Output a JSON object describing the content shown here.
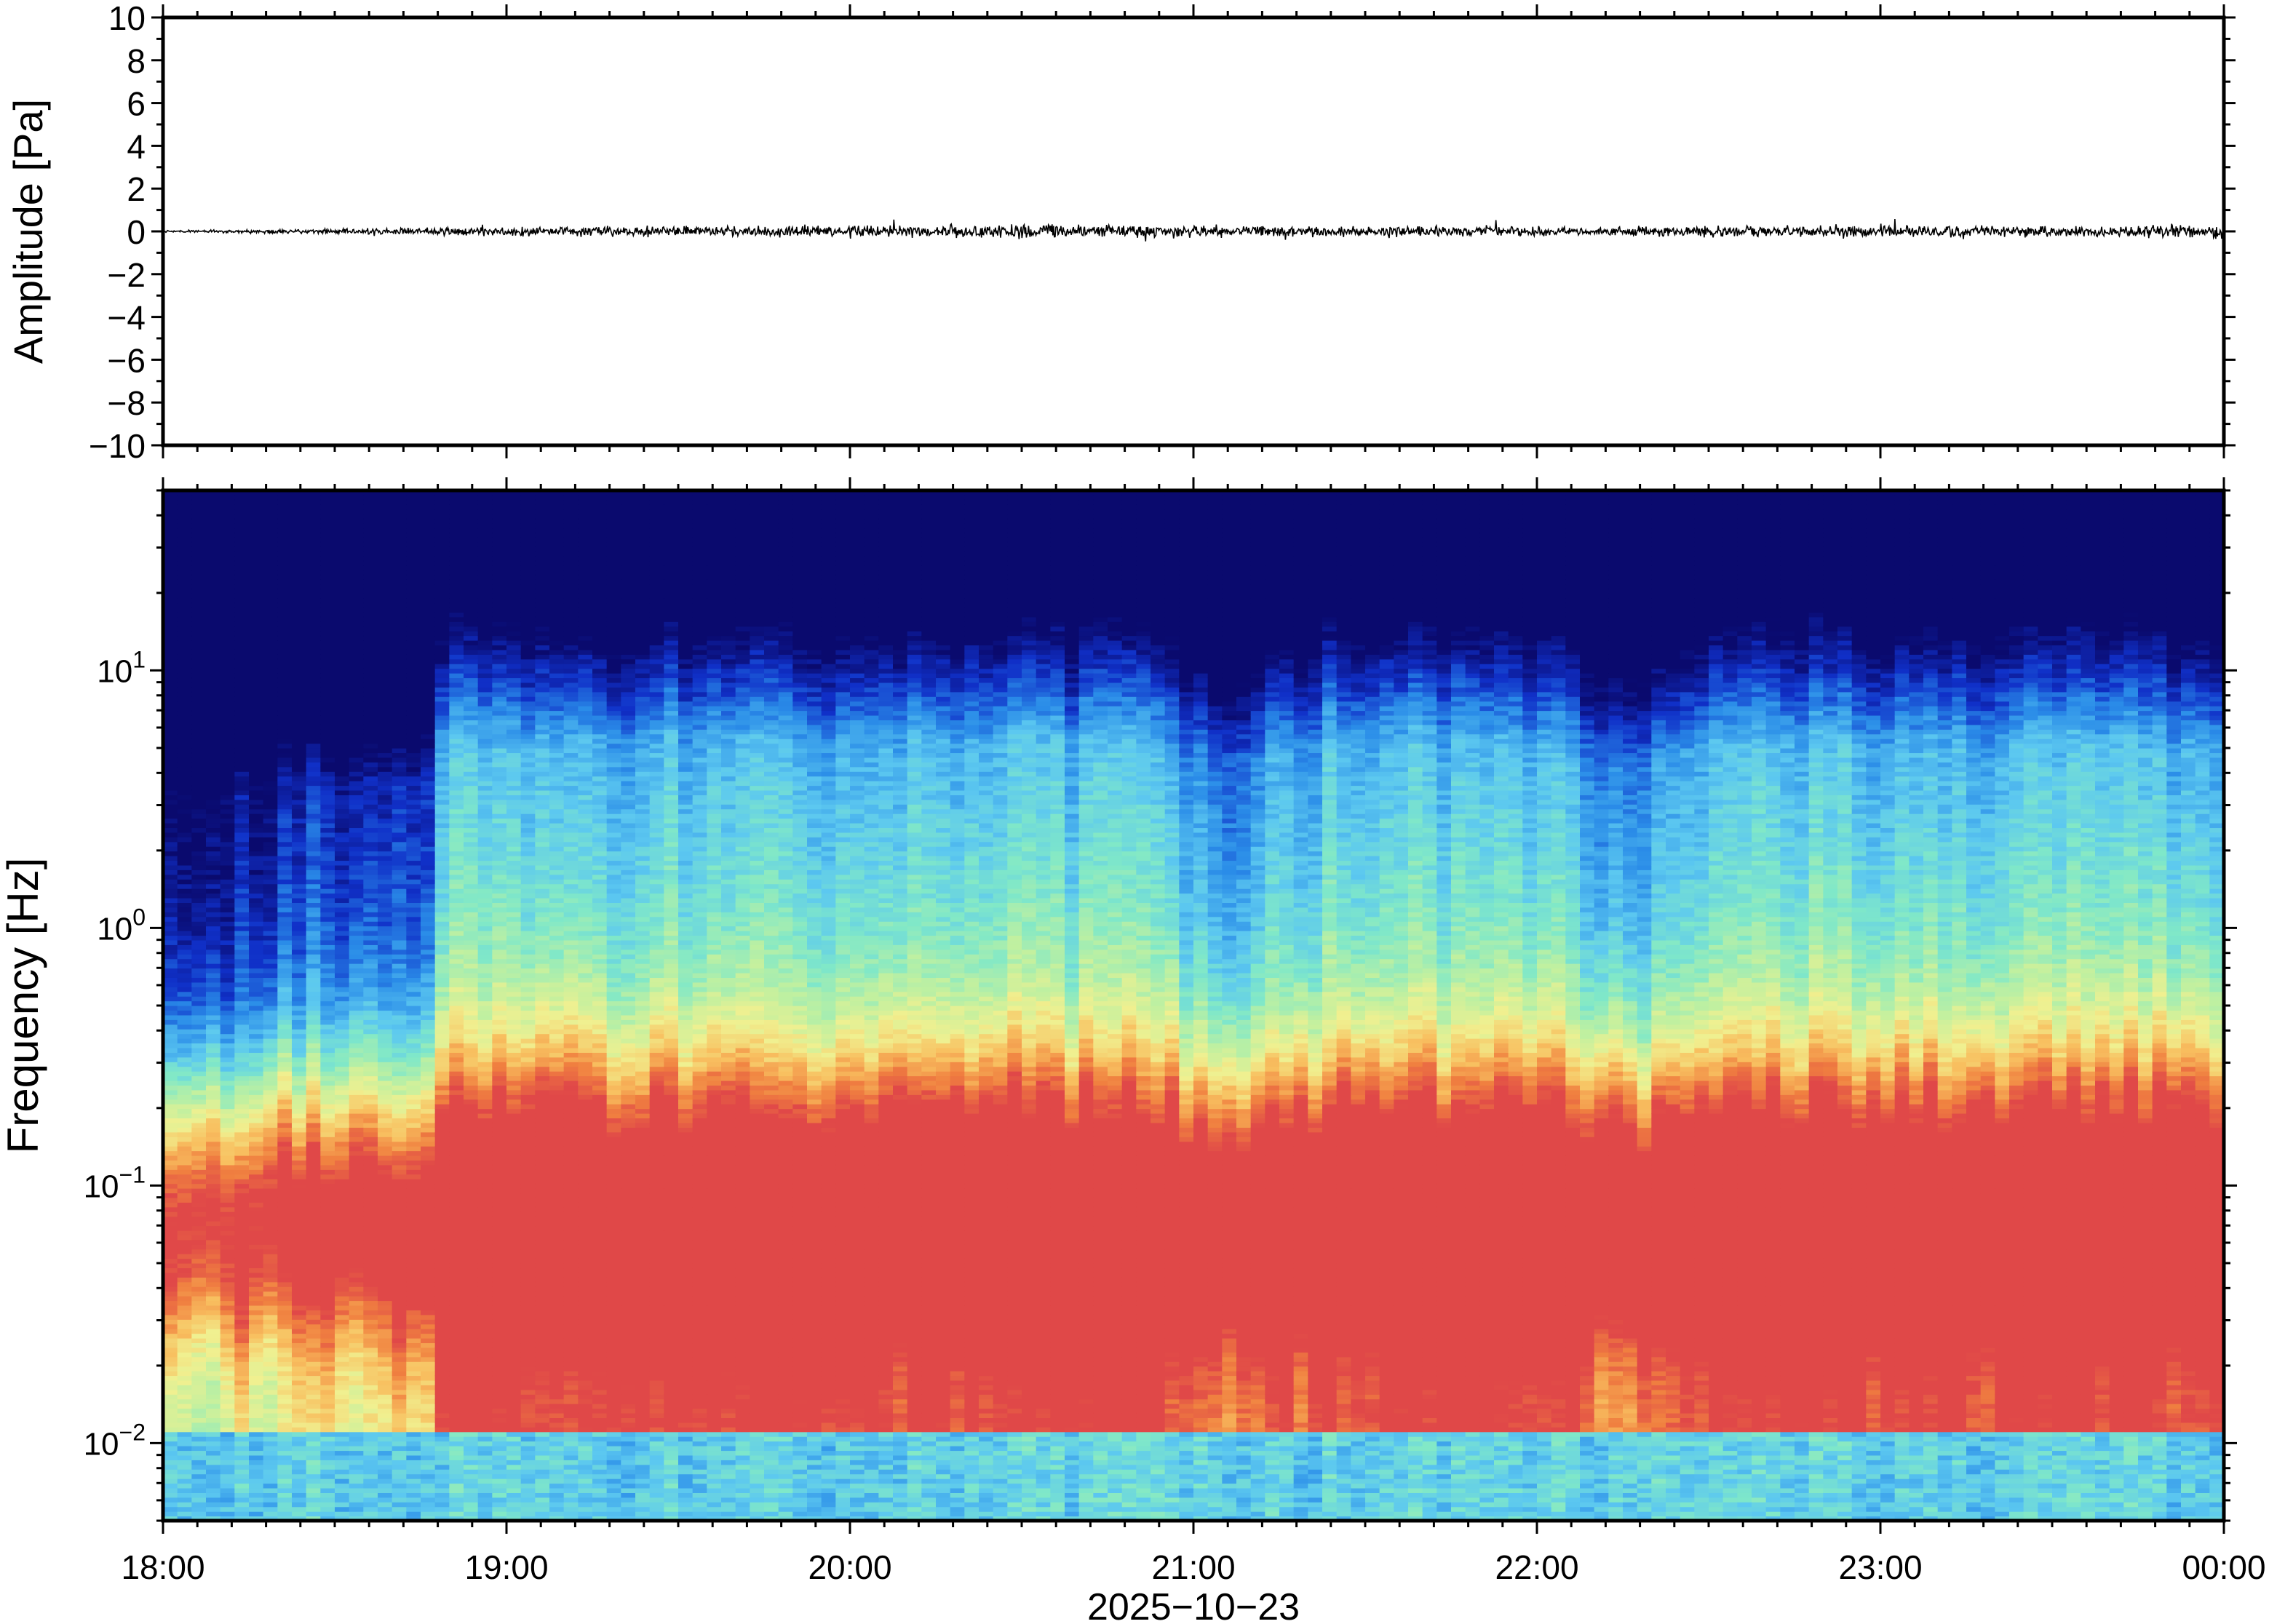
{
  "chart_data": [
    {
      "type": "line",
      "title": "",
      "xlabel": "",
      "ylabel": "Amplitude [Pa]",
      "ylim": [
        -10,
        10
      ],
      "y_ticks": [
        "10",
        "8",
        "6",
        "4",
        "2",
        "0",
        "−2",
        "−4",
        "−6",
        "−8",
        "−10"
      ],
      "grid": false,
      "series": [
        {
          "x_hours_of_day": [
            18.0,
            18.5,
            18.8,
            19.0,
            19.5,
            20.0,
            20.5,
            21.0,
            21.5,
            22.0,
            22.5,
            23.0,
            23.5,
            24.0
          ],
          "envelope_pa": [
            0.04,
            0.1,
            0.15,
            0.18,
            0.2,
            0.25,
            0.3,
            0.25,
            0.22,
            0.2,
            0.22,
            0.25,
            0.22,
            0.3
          ],
          "color": "#000000"
        }
      ]
    },
    {
      "type": "heatmap",
      "title": "",
      "xlabel": "2025−10−23",
      "ylabel": "Frequency [Hz]",
      "x_ticks": [
        "18:00",
        "19:00",
        "20:00",
        "21:00",
        "22:00",
        "23:00",
        "00:00"
      ],
      "xlim": [
        "2025-10-23 18:00",
        "2025-10-24 00:00"
      ],
      "y_scale": "log",
      "ylim_hz": [
        0.005,
        50
      ],
      "y_tick_values_hz": [
        0.01,
        0.1,
        1,
        10
      ],
      "y_ticks": [
        {
          "base": "10",
          "exp": "−2"
        },
        {
          "base": "10",
          "exp": "−1"
        },
        {
          "base": "10",
          "exp": "0"
        },
        {
          "base": "10",
          "exp": "1"
        }
      ],
      "colormap": [
        "#0a0a6e",
        "#1030c8",
        "#2a8ce8",
        "#5cc8f0",
        "#80e8c8",
        "#c0f0a0",
        "#f0f090",
        "#f8c060",
        "#f08040",
        "#e04848"
      ],
      "features": {
        "quiet_period_end_hour": 18.8,
        "dip_hours": [
          21.0,
          22.2
        ],
        "peak_energy_band_hz": [
          0.03,
          0.15
        ]
      }
    }
  ]
}
